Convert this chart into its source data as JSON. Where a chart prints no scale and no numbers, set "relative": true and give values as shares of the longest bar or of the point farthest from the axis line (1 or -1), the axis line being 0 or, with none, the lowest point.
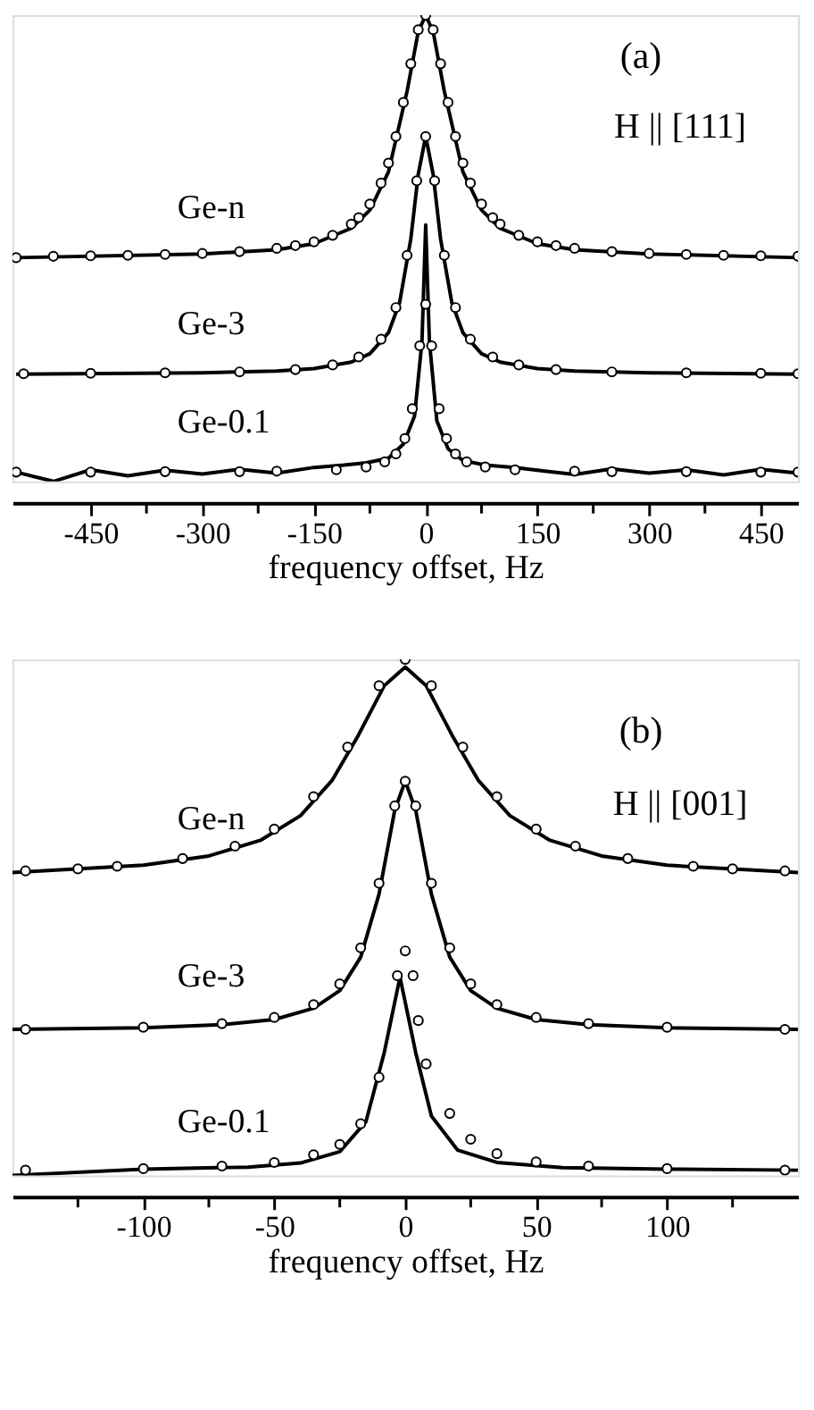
{
  "chart_data": [
    {
      "type": "line",
      "relative": true,
      "xlabel": "frequency offset, Hz",
      "xlim": [
        -555,
        500
      ],
      "xticks": [
        -450,
        {
          "value": -375,
          "label": null
        },
        -300,
        {
          "value": -225,
          "label": null
        },
        -150,
        {
          "value": -75,
          "label": null
        },
        0,
        {
          "value": 75,
          "label": null
        },
        150,
        {
          "value": 225,
          "label": null
        },
        300,
        {
          "value": 375,
          "label": null
        },
        450
      ],
      "grid": false,
      "line_style": "solid",
      "annotations": [
        "(a)",
        "H || [111]"
      ],
      "series": [
        {
          "name": "Ge-n",
          "color": "#000000",
          "x": [
            -550,
            -300,
            -200,
            -150,
            -100,
            -75,
            -50,
            -25,
            -10,
            0,
            10,
            25,
            50,
            75,
            100,
            150,
            200,
            300,
            500
          ],
          "values": [
            0.48,
            0.488,
            0.497,
            0.51,
            0.543,
            0.582,
            0.664,
            0.837,
            0.965,
            1.0,
            0.965,
            0.837,
            0.664,
            0.582,
            0.543,
            0.51,
            0.497,
            0.488,
            0.48
          ]
        },
        {
          "type": "scatter",
          "marker": "circle",
          "color": "#000000",
          "x": [
            -550,
            -500,
            -450,
            -400,
            -350,
            -300,
            -250,
            -200,
            -175,
            -150,
            -125,
            -100,
            -90,
            -75,
            -60,
            -50,
            -40,
            -30,
            -20,
            -10,
            0,
            10,
            20,
            30,
            40,
            50,
            60,
            75,
            90,
            100,
            125,
            150,
            175,
            200,
            250,
            300,
            350,
            400,
            450,
            500
          ],
          "values": [
            0.48,
            0.483,
            0.484,
            0.485,
            0.487,
            0.489,
            0.493,
            0.5,
            0.506,
            0.514,
            0.528,
            0.552,
            0.566,
            0.595,
            0.64,
            0.683,
            0.74,
            0.813,
            0.896,
            0.969,
            1.0,
            0.969,
            0.896,
            0.813,
            0.74,
            0.683,
            0.64,
            0.595,
            0.566,
            0.552,
            0.528,
            0.514,
            0.506,
            0.5,
            0.493,
            0.489,
            0.487,
            0.485,
            0.484,
            0.483
          ]
        },
        {
          "name": "Ge-3",
          "color": "#000000",
          "x": [
            -550,
            -300,
            -200,
            -150,
            -100,
            -75,
            -50,
            -35,
            -20,
            -10,
            0,
            10,
            20,
            35,
            50,
            75,
            100,
            150,
            200,
            300,
            500
          ],
          "values": [
            0.23,
            0.233,
            0.237,
            0.242,
            0.256,
            0.274,
            0.319,
            0.384,
            0.52,
            0.659,
            0.74,
            0.659,
            0.52,
            0.384,
            0.319,
            0.274,
            0.256,
            0.242,
            0.237,
            0.233,
            0.23
          ]
        },
        {
          "type": "scatter",
          "marker": "circle",
          "color": "#000000",
          "x": [
            -540,
            -450,
            -350,
            -250,
            -175,
            -125,
            -90,
            -60,
            -40,
            -25,
            -12,
            0,
            12,
            25,
            40,
            60,
            90,
            125,
            175,
            250,
            350,
            450,
            500
          ],
          "values": [
            0.231,
            0.232,
            0.233,
            0.235,
            0.24,
            0.25,
            0.267,
            0.305,
            0.373,
            0.485,
            0.645,
            0.74,
            0.645,
            0.485,
            0.373,
            0.305,
            0.267,
            0.25,
            0.24,
            0.235,
            0.233,
            0.232,
            0.231
          ]
        },
        {
          "name": "Ge-0.1",
          "color": "#000000",
          "x": [
            -550,
            -500,
            -450,
            -400,
            -350,
            -300,
            -250,
            -200,
            -150,
            -110,
            -80,
            -50,
            -30,
            -15,
            -5,
            0,
            5,
            15,
            30,
            50,
            80,
            120,
            160,
            200,
            250,
            300,
            350,
            400,
            450,
            500
          ],
          "values": [
            0.02,
            0.0,
            0.025,
            0.012,
            0.024,
            0.016,
            0.026,
            0.018,
            0.03,
            0.035,
            0.04,
            0.05,
            0.08,
            0.14,
            0.3,
            0.55,
            0.3,
            0.13,
            0.07,
            0.045,
            0.035,
            0.03,
            0.022,
            0.015,
            0.027,
            0.018,
            0.025,
            0.014,
            0.026,
            0.018
          ]
        },
        {
          "type": "scatter",
          "marker": "circle",
          "color": "#000000",
          "x": [
            -550,
            -450,
            -350,
            -250,
            -200,
            -120,
            -80,
            -55,
            -40,
            -28,
            -18,
            -8,
            0,
            8,
            18,
            28,
            40,
            55,
            80,
            120,
            200,
            250,
            350,
            450,
            500
          ],
          "values": [
            0.02,
            0.02,
            0.021,
            0.021,
            0.022,
            0.025,
            0.031,
            0.042,
            0.059,
            0.092,
            0.156,
            0.291,
            0.38,
            0.291,
            0.156,
            0.092,
            0.059,
            0.042,
            0.031,
            0.025,
            0.022,
            0.021,
            0.021,
            0.02,
            0.02
          ]
        }
      ]
    },
    {
      "type": "line",
      "relative": true,
      "xlabel": "frequency offset, Hz",
      "xlim": [
        -150,
        150
      ],
      "xticks": [
        {
          "value": -125,
          "label": null
        },
        -100,
        {
          "value": -75,
          "label": null
        },
        -50,
        {
          "value": -25,
          "label": null
        },
        0,
        {
          "value": 25,
          "label": null
        },
        50,
        {
          "value": 75,
          "label": null
        },
        100,
        {
          "value": 125,
          "label": null
        }
      ],
      "grid": false,
      "line_style": "solid",
      "annotations": [
        "(b)",
        "H || [001]"
      ],
      "series": [
        {
          "name": "Ge-n",
          "color": "#000000",
          "x": [
            -150,
            -100,
            -75,
            -55,
            -40,
            -28,
            -18,
            -8,
            0,
            8,
            18,
            28,
            40,
            55,
            75,
            100,
            150
          ],
          "values": [
            0.587,
            0.601,
            0.619,
            0.65,
            0.697,
            0.765,
            0.852,
            0.949,
            0.985,
            0.949,
            0.852,
            0.765,
            0.697,
            0.65,
            0.619,
            0.601,
            0.587
          ]
        },
        {
          "type": "scatter",
          "marker": "circle",
          "color": "#000000",
          "x": [
            -145,
            -125,
            -110,
            -85,
            -65,
            -50,
            -35,
            -22,
            -10,
            0,
            10,
            22,
            35,
            50,
            65,
            85,
            110,
            125,
            145
          ],
          "values": [
            0.59,
            0.594,
            0.599,
            0.614,
            0.638,
            0.671,
            0.734,
            0.83,
            0.949,
            1.0,
            0.949,
            0.83,
            0.734,
            0.671,
            0.638,
            0.614,
            0.599,
            0.594,
            0.59
          ]
        },
        {
          "name": "Ge-3",
          "color": "#000000",
          "x": [
            -150,
            -100,
            -70,
            -50,
            -35,
            -25,
            -17,
            -10,
            -4,
            0,
            4,
            10,
            17,
            25,
            35,
            50,
            70,
            100,
            150
          ],
          "values": [
            0.283,
            0.286,
            0.292,
            0.302,
            0.324,
            0.358,
            0.423,
            0.545,
            0.708,
            0.764,
            0.708,
            0.545,
            0.423,
            0.358,
            0.324,
            0.302,
            0.292,
            0.286,
            0.283
          ]
        },
        {
          "type": "scatter",
          "marker": "circle",
          "color": "#000000",
          "x": [
            -145,
            -100,
            -70,
            -50,
            -35,
            -25,
            -17,
            -10,
            -4,
            0,
            4,
            10,
            17,
            25,
            35,
            50,
            70,
            100,
            145
          ],
          "values": [
            0.283,
            0.287,
            0.294,
            0.306,
            0.331,
            0.371,
            0.441,
            0.566,
            0.716,
            0.764,
            0.716,
            0.566,
            0.441,
            0.371,
            0.331,
            0.306,
            0.294,
            0.287,
            0.283
          ]
        },
        {
          "name": "Ge-0.1",
          "color": "#000000",
          "x": [
            -150,
            -100,
            -60,
            -40,
            -25,
            -15,
            -8,
            -2,
            4,
            10,
            20,
            35,
            60,
            100,
            150
          ],
          "values": [
            0.0,
            0.012,
            0.016,
            0.024,
            0.046,
            0.104,
            0.238,
            0.384,
            0.238,
            0.115,
            0.049,
            0.025,
            0.015,
            0.012,
            0.01
          ]
        },
        {
          "type": "scatter",
          "marker": "circle",
          "color": "#000000",
          "x": [
            -145,
            -100,
            -70,
            -50,
            -35,
            -25,
            -17,
            -10,
            -3,
            0,
            3,
            5,
            8,
            17,
            25,
            35,
            50,
            70,
            100,
            145
          ],
          "values": [
            0.01,
            0.013,
            0.018,
            0.025,
            0.04,
            0.06,
            0.1,
            0.19,
            0.387,
            0.435,
            0.387,
            0.3,
            0.216,
            0.12,
            0.07,
            0.042,
            0.026,
            0.018,
            0.013,
            0.01
          ]
        }
      ]
    }
  ]
}
